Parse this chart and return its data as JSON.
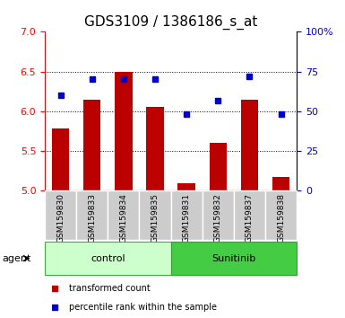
{
  "title": "GDS3109 / 1386186_s_at",
  "samples": [
    "GSM159830",
    "GSM159833",
    "GSM159834",
    "GSM159835",
    "GSM159831",
    "GSM159832",
    "GSM159837",
    "GSM159838"
  ],
  "red_values": [
    5.78,
    6.15,
    6.5,
    6.05,
    5.1,
    5.6,
    6.15,
    5.17
  ],
  "blue_values": [
    60,
    70,
    70,
    70,
    48,
    57,
    72,
    48
  ],
  "ylim_left": [
    5,
    7
  ],
  "ylim_right": [
    0,
    100
  ],
  "yticks_left": [
    5,
    5.5,
    6,
    6.5,
    7
  ],
  "yticks_right": [
    0,
    25,
    50,
    75,
    100
  ],
  "ytick_labels_right": [
    "0",
    "25",
    "50",
    "75",
    "100%"
  ],
  "control_label": "control",
  "sunitinib_label": "Sunitinib",
  "agent_label": "agent",
  "legend_red": "transformed count",
  "legend_blue": "percentile rank within the sample",
  "bar_color": "#bb0000",
  "blue_color": "#0000cc",
  "control_fill": "#ccffcc",
  "sunitinib_fill": "#44cc44",
  "tick_bg": "#cccccc",
  "bar_width": 0.55,
  "title_fontsize": 11
}
